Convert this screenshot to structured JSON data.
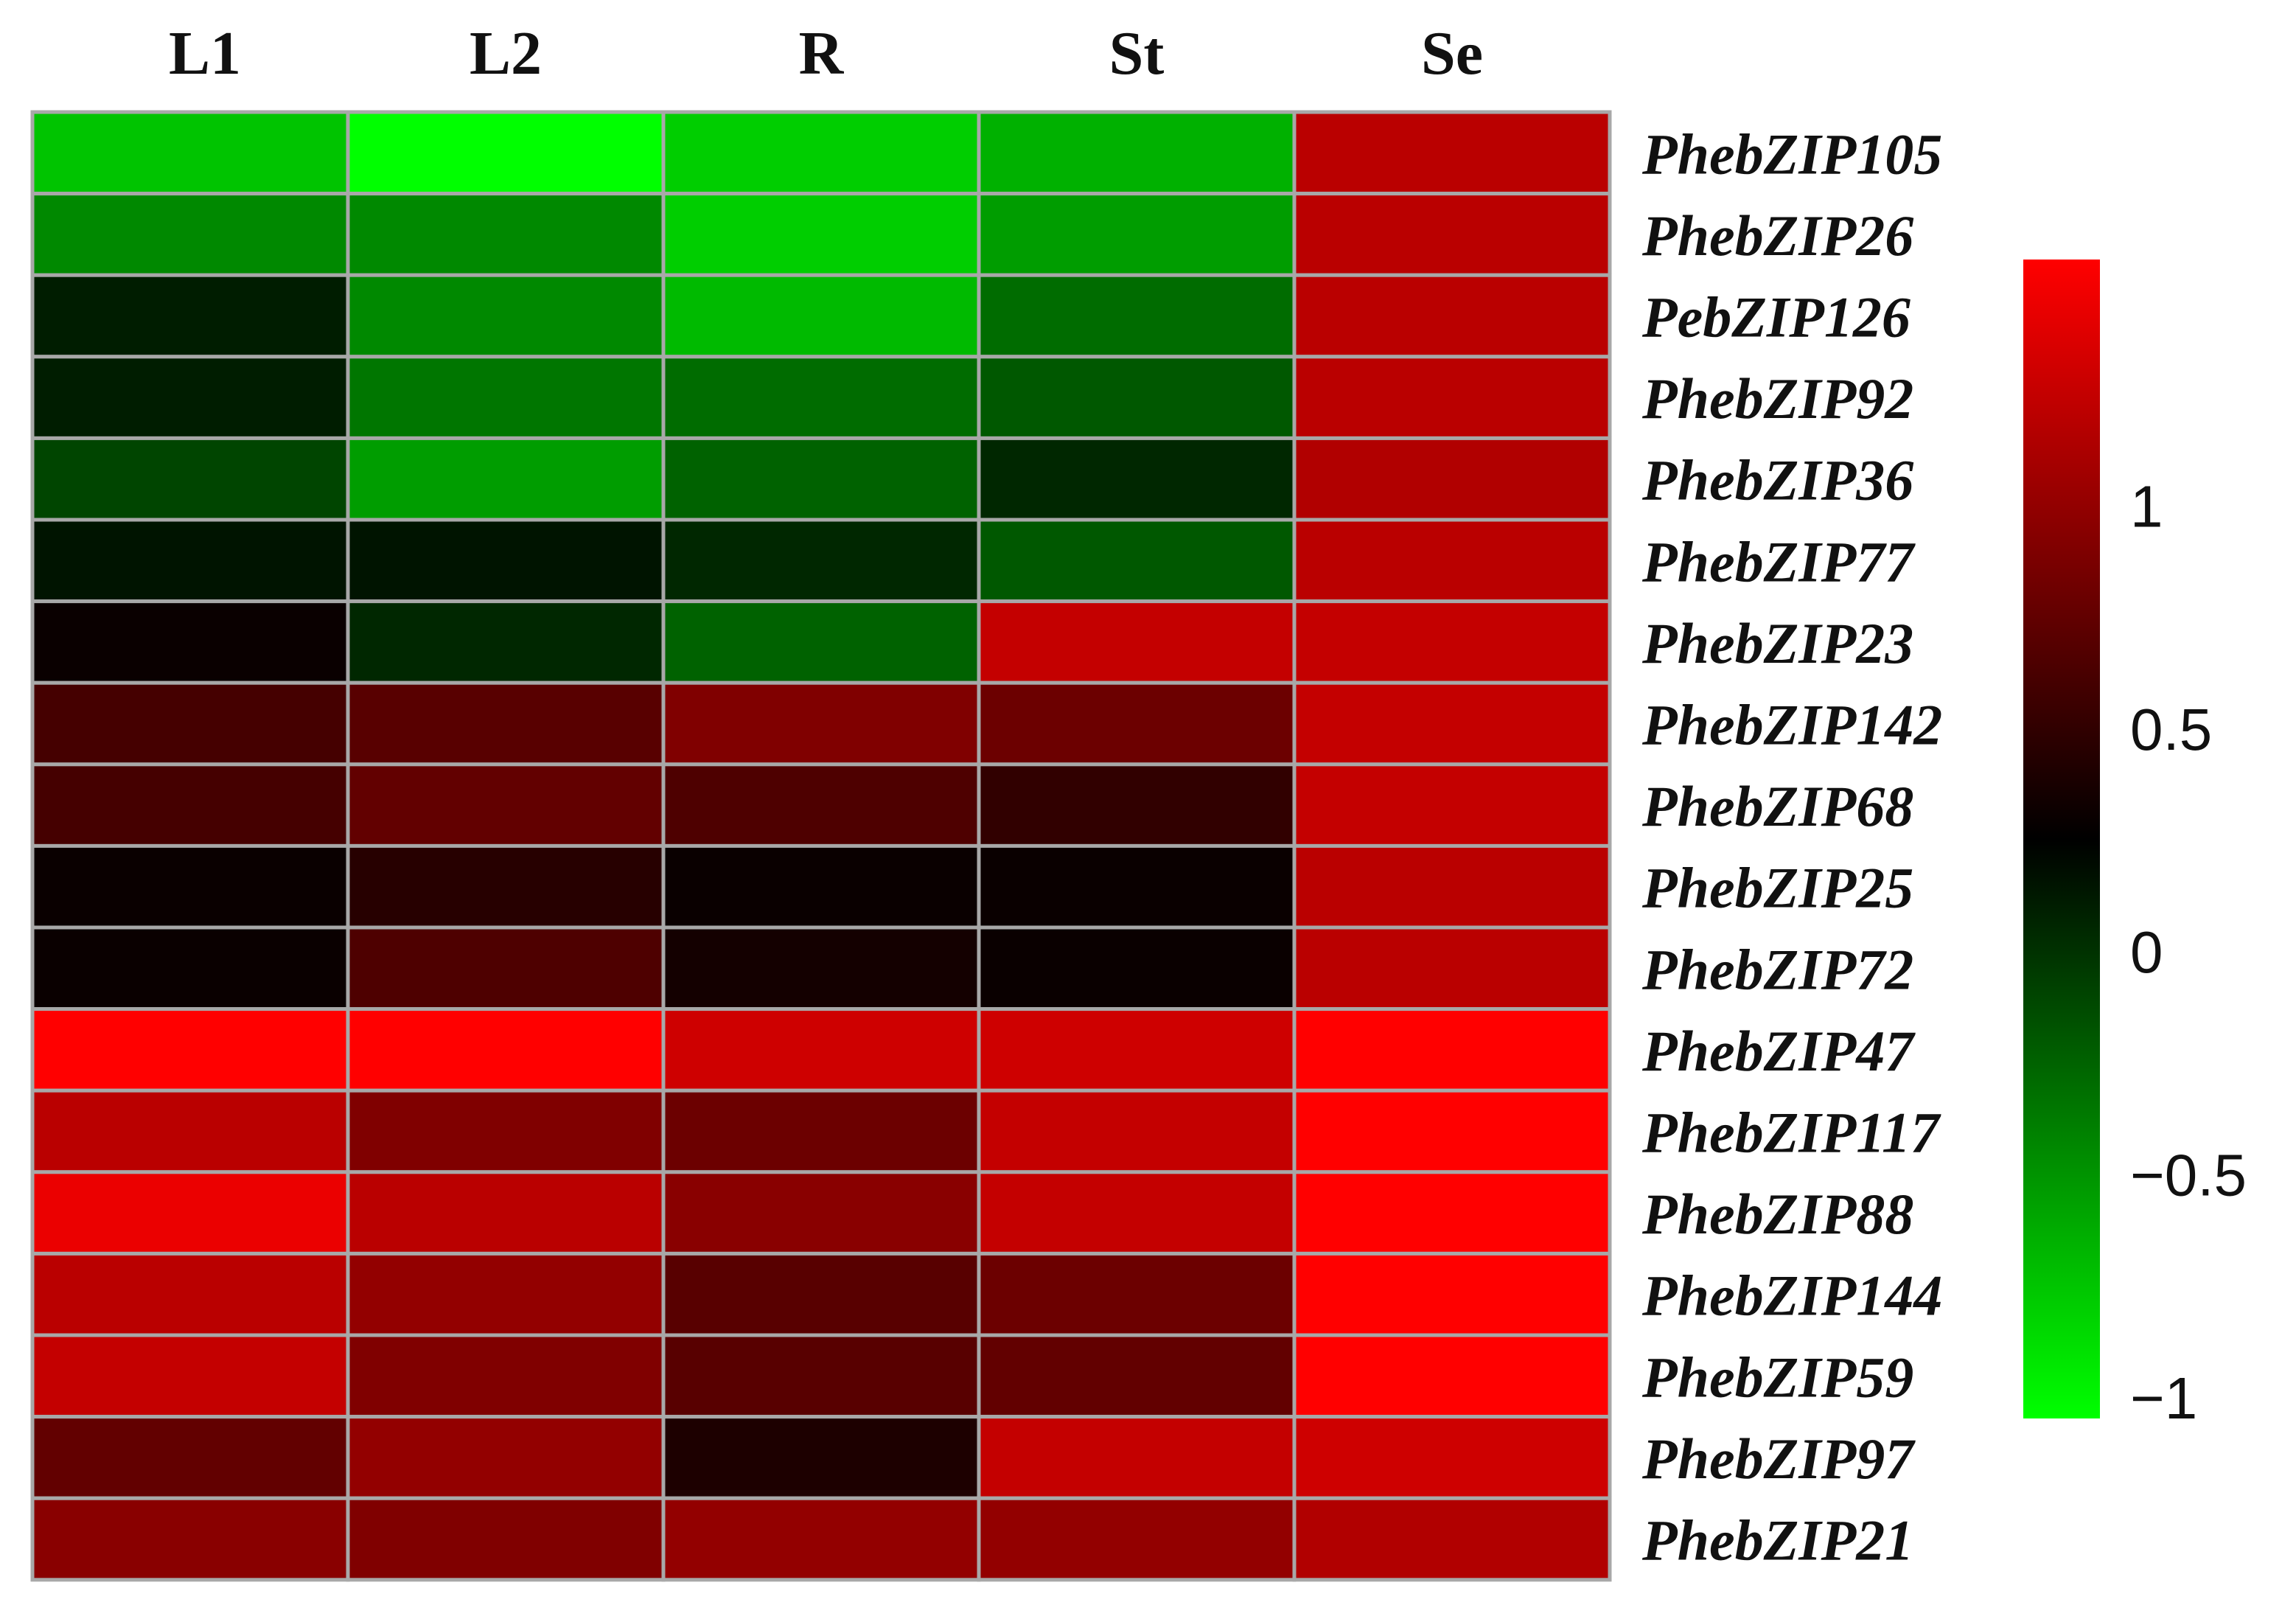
{
  "chart_data": {
    "type": "heatmap",
    "columns": [
      "L1",
      "L2",
      "R",
      "St",
      "Se"
    ],
    "rows": [
      "PhebZIP105",
      "PhebZIP26",
      "PebZIP126",
      "PhebZIP92",
      "PhebZIP36",
      "PhebZIP77",
      "PhebZIP23",
      "PhebZIP142",
      "PhebZIP68",
      "PhebZIP25",
      "PhebZIP72",
      "PhebZIP47",
      "PhebZIP117",
      "PhebZIP88",
      "PhebZIP144",
      "PhebZIP59",
      "PhebZIP97",
      "PhebZIP21"
    ],
    "values": [
      [
        -1.0,
        -1.3,
        -1.05,
        -0.9,
        0.95
      ],
      [
        -0.7,
        -0.7,
        -1.05,
        -0.8,
        0.95
      ],
      [
        -0.15,
        -0.7,
        -0.95,
        -0.55,
        0.95
      ],
      [
        -0.15,
        -0.6,
        -0.55,
        -0.45,
        0.95
      ],
      [
        -0.35,
        -0.8,
        -0.5,
        -0.2,
        0.9
      ],
      [
        -0.1,
        -0.1,
        -0.2,
        -0.45,
        0.95
      ],
      [
        0.05,
        -0.2,
        -0.5,
        1.0,
        1.0
      ],
      [
        0.35,
        0.45,
        0.65,
        0.55,
        1.0
      ],
      [
        0.35,
        0.5,
        0.4,
        0.25,
        1.0
      ],
      [
        0.05,
        0.2,
        0.05,
        0.05,
        0.95
      ],
      [
        0.05,
        0.4,
        0.1,
        0.05,
        0.95
      ],
      [
        1.3,
        1.3,
        1.05,
        1.05,
        1.3
      ],
      [
        0.95,
        0.65,
        0.55,
        1.0,
        1.3
      ],
      [
        1.2,
        0.95,
        0.7,
        1.0,
        1.3
      ],
      [
        0.95,
        0.75,
        0.45,
        0.55,
        1.3
      ],
      [
        1.0,
        0.65,
        0.45,
        0.5,
        1.3
      ],
      [
        0.5,
        0.75,
        0.15,
        1.0,
        1.05
      ],
      [
        0.7,
        0.65,
        0.75,
        0.75,
        0.9
      ]
    ],
    "legend": {
      "ticks": [
        {
          "value": 1,
          "label": "1"
        },
        {
          "value": 0.5,
          "label": "0.5"
        },
        {
          "value": 0,
          "label": "0"
        },
        {
          "value": -0.5,
          "label": "−0.5"
        },
        {
          "value": -1,
          "label": "−1"
        }
      ],
      "range": [
        -1.3,
        1.3
      ],
      "colors": {
        "low": "#00ff00",
        "mid": "#000000",
        "high": "#ff0000"
      },
      "placement": "right"
    },
    "grid": true
  }
}
